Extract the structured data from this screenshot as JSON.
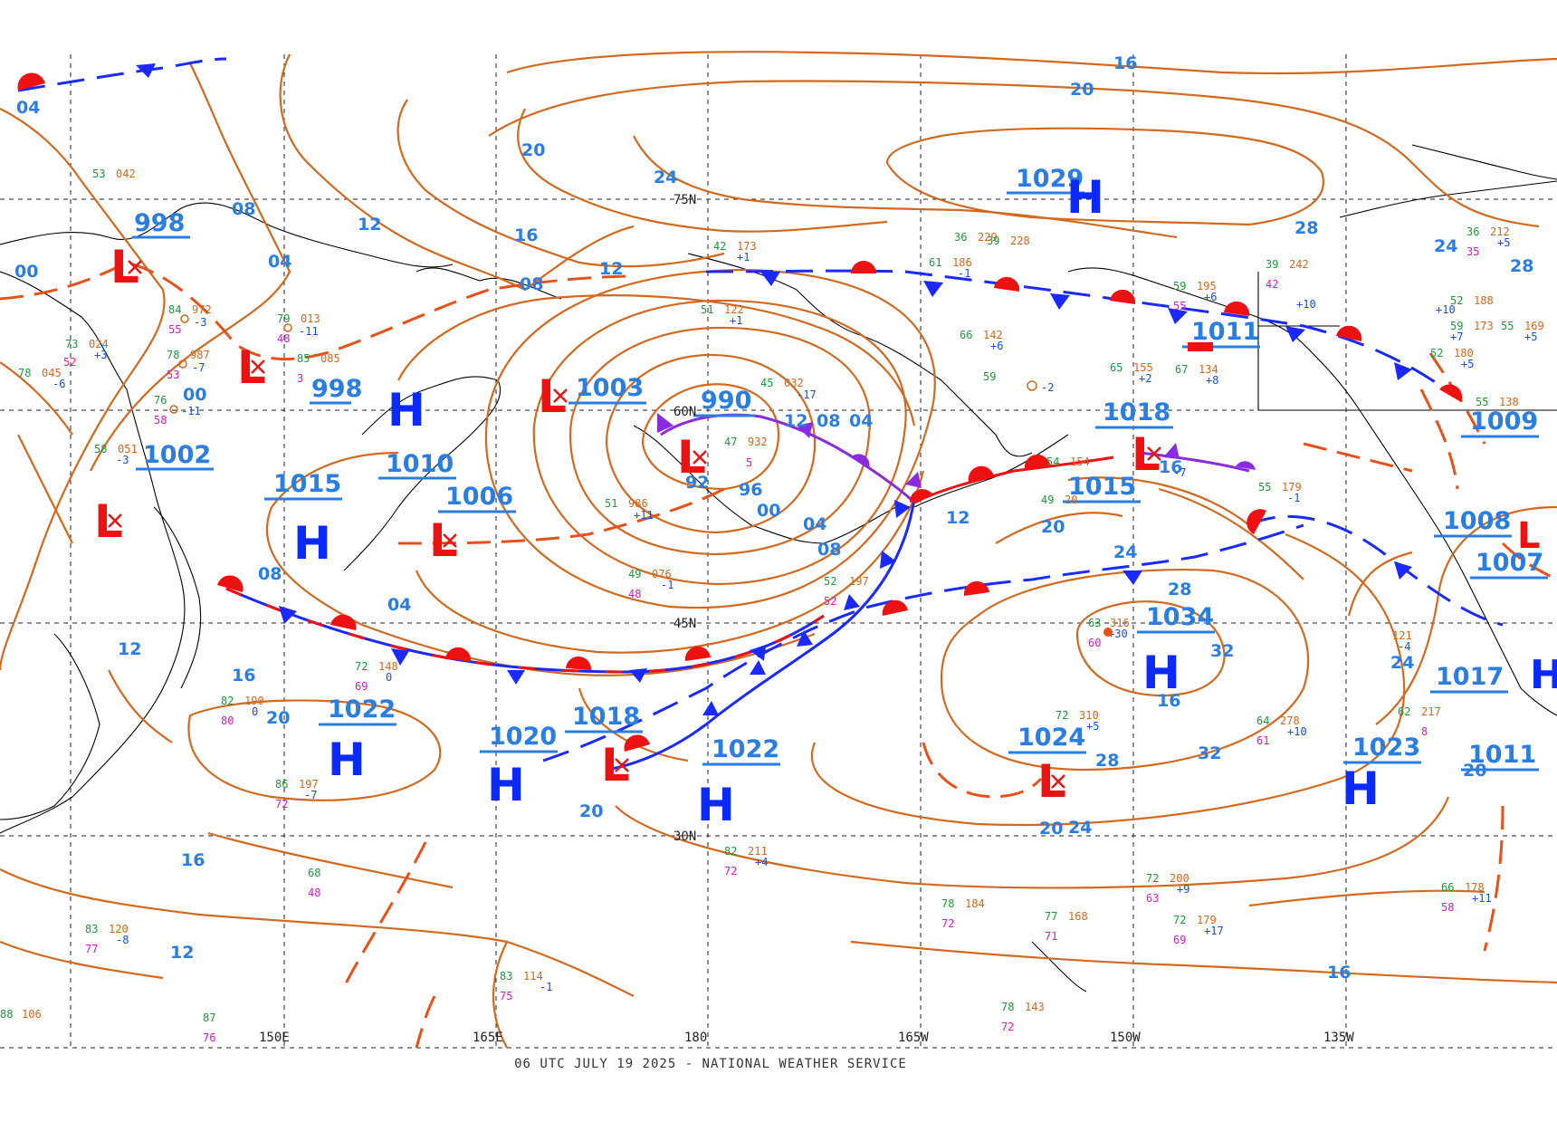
{
  "footer": "06 UTC JULY 19 2025 - NATIONAL WEATHER SERVICE",
  "longitude_labels": [
    "150E",
    "165E",
    "180",
    "165W",
    "150W",
    "135W"
  ],
  "latitude_labels": [
    "75N",
    "60N",
    "45N",
    "30N"
  ],
  "colors": {
    "isobar": "#d2691e",
    "label": "#2a7de1",
    "high": "#0a2aff",
    "low": "#ee1111",
    "warm_front": "#ee1111",
    "cold_front": "#1a2aff",
    "occluded_front": "#8a2be2"
  },
  "isobar_labels": [
    "04",
    "08",
    "12",
    "16",
    "20",
    "24",
    "28",
    "00",
    "04",
    "08",
    "12",
    "16",
    "20",
    "24",
    "28",
    "32",
    "92",
    "96",
    "00",
    "04",
    "08",
    "12",
    "16",
    "20",
    "24",
    "28",
    "32",
    "16",
    "12",
    "08",
    "04",
    "00",
    "20",
    "24",
    "20",
    "16",
    "12",
    "08",
    "04",
    "20",
    "24",
    "28",
    "16",
    "20",
    "16",
    "12"
  ],
  "pressure_centers": [
    {
      "type": "L",
      "value": "998"
    },
    {
      "type": "L",
      "value": "998"
    },
    {
      "type": "L",
      "value": "1002"
    },
    {
      "type": "H",
      "value": "1015"
    },
    {
      "type": "H",
      "value": "1010"
    },
    {
      "type": "L",
      "value": "1006"
    },
    {
      "type": "L",
      "value": "1003"
    },
    {
      "type": "L",
      "value": "990"
    },
    {
      "type": "H",
      "value": "1029"
    },
    {
      "type": "L",
      "value": "1011"
    },
    {
      "type": "L",
      "value": "1018"
    },
    {
      "type": "L",
      "value": "1015"
    },
    {
      "type": "H",
      "value": "1034"
    },
    {
      "type": "L",
      "value": "1024"
    },
    {
      "type": "H",
      "value": "1022"
    },
    {
      "type": "H",
      "value": "1020"
    },
    {
      "type": "L",
      "value": "1018"
    },
    {
      "type": "H",
      "value": "1022"
    },
    {
      "type": "H",
      "value": "1023"
    },
    {
      "type": "L",
      "value": "1009"
    },
    {
      "type": "L",
      "value": "1008"
    },
    {
      "type": "L",
      "value": "1007"
    },
    {
      "type": "H",
      "value": "1017"
    },
    {
      "type": "L",
      "value": "1011"
    }
  ],
  "station_obs": [
    {
      "t": "53",
      "p": "042"
    },
    {
      "t": "84",
      "p": "972",
      "d": "55",
      "c": "-3"
    },
    {
      "t": "78",
      "p": "987",
      "d": "53",
      "c": "-7"
    },
    {
      "t": "79",
      "p": "013",
      "d": "48",
      "c": "-11"
    },
    {
      "t": "85",
      "p": "085",
      "d": "3"
    },
    {
      "t": "76",
      "c": "-11",
      "d": "58"
    },
    {
      "t": "73",
      "p": "024",
      "c": "+3",
      "d": "52"
    },
    {
      "t": "78",
      "p": "045",
      "c": "-6"
    },
    {
      "t": "58",
      "p": "051",
      "c": "-3"
    },
    {
      "t": "45",
      "p": "032",
      "c": "-17"
    },
    {
      "t": "47",
      "p": "932",
      "d": "5"
    },
    {
      "t": "51",
      "p": "986",
      "c": "+11"
    },
    {
      "t": "49",
      "p": "076",
      "c": "-1",
      "d": "48"
    },
    {
      "t": "52",
      "p": "197",
      "d": "52"
    },
    {
      "t": "72",
      "p": "148",
      "c": "0",
      "d": "69"
    },
    {
      "t": "82",
      "p": "190",
      "c": "0",
      "d": "80"
    },
    {
      "t": "86",
      "p": "197",
      "c": "-7",
      "d": "72"
    },
    {
      "t": "82",
      "p": "211",
      "c": "+4",
      "d": "72"
    },
    {
      "t": "63",
      "p": "316",
      "c": "+30",
      "d": "60"
    },
    {
      "t": "72",
      "p": "310",
      "c": "+5"
    },
    {
      "t": "64",
      "p": "278",
      "c": "+10",
      "d": "61"
    },
    {
      "t": "72",
      "p": "200",
      "c": "+9",
      "d": "63"
    },
    {
      "t": "72",
      "p": "179",
      "c": "+17",
      "d": "69"
    },
    {
      "t": "77",
      "p": "168",
      "d": "71"
    },
    {
      "t": "78",
      "p": "184",
      "d": "72"
    },
    {
      "t": "78",
      "p": "143",
      "d": "72"
    },
    {
      "t": "83",
      "p": "114",
      "c": "-1",
      "d": "75"
    },
    {
      "t": "83",
      "p": "120",
      "c": "-8",
      "d": "77"
    },
    {
      "t": "87",
      "d": "76"
    },
    {
      "t": "68",
      "d": "48"
    },
    {
      "t": "88",
      "p": "106"
    },
    {
      "t": "66",
      "p": "178",
      "c": "+11",
      "d": "58"
    },
    {
      "t": "62",
      "p": "217",
      "d": "8"
    },
    {
      "t": "121",
      "c": "-4"
    },
    {
      "t": "59",
      "p": "195",
      "c": "+6",
      "d": "55"
    },
    {
      "t": "67",
      "p": "134",
      "c": "+8"
    },
    {
      "t": "39",
      "p": "242",
      "c": "+10",
      "d": "42"
    },
    {
      "t": "36",
      "p": "212",
      "c": "+5",
      "d": "35"
    },
    {
      "t": "52",
      "p": "188",
      "c": "+10"
    },
    {
      "t": "55",
      "p": "169",
      "c": "+5"
    },
    {
      "t": "59",
      "p": "173",
      "c": "+7"
    },
    {
      "t": "52",
      "p": "180",
      "c": "+5"
    },
    {
      "t": "42",
      "p": "173",
      "c": "+1"
    },
    {
      "t": "51",
      "p": "122",
      "c": "+1"
    },
    {
      "t": "36",
      "p": "229"
    },
    {
      "t": "39",
      "p": "228"
    },
    {
      "t": "61",
      "p": "186",
      "c": "-1"
    },
    {
      "t": "66",
      "p": "142",
      "c": "+6"
    },
    {
      "t": "55",
      "p": "138"
    },
    {
      "t": "59",
      "c": "-2"
    },
    {
      "t": "65",
      "p": "155",
      "c": "+2"
    },
    {
      "t": "54",
      "p": "154",
      "c": "-7"
    },
    {
      "t": "55",
      "p": "179",
      "c": "-1"
    },
    {
      "t": "49",
      "p": "20"
    }
  ]
}
